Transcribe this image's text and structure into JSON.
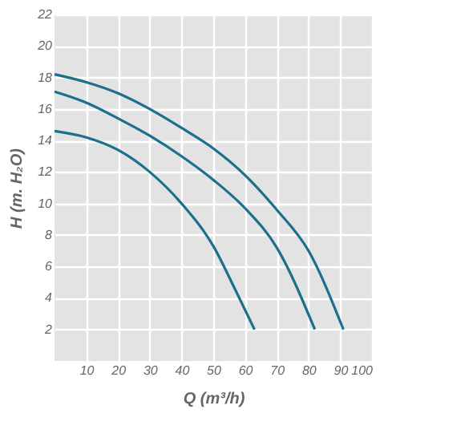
{
  "chart_data": {
    "type": "line",
    "xlabel": "Q (m³/h)",
    "ylabel": "H (m. H₂O)",
    "xlim": [
      0,
      100
    ],
    "ylim": [
      0,
      22
    ],
    "xticks": [
      10,
      20,
      30,
      40,
      50,
      60,
      70,
      80,
      90,
      100
    ],
    "yticks": [
      2,
      4,
      6,
      8,
      10,
      12,
      14,
      16,
      18,
      20,
      22
    ],
    "grid": true,
    "marker": "none",
    "line_style": "solid",
    "series": [
      {
        "color": "#1d6f8c",
        "x": [
          0,
          10,
          20,
          30,
          40,
          50,
          57,
          63
        ],
        "values": [
          14.6,
          14.2,
          13.4,
          12,
          10,
          7.3,
          4.5,
          2
        ]
      },
      {
        "color": "#1d6f8c",
        "x": [
          0,
          10,
          20,
          30,
          40,
          50,
          60,
          70,
          82
        ],
        "values": [
          17.1,
          16.4,
          15.4,
          14.3,
          13,
          11.5,
          9.7,
          7.2,
          2
        ]
      },
      {
        "color": "#1d6f8c",
        "x": [
          0,
          10,
          20,
          30,
          40,
          50,
          60,
          70,
          80,
          91
        ],
        "values": [
          18.2,
          17.7,
          17,
          16,
          14.8,
          13.5,
          11.8,
          9.6,
          7,
          2
        ]
      }
    ]
  }
}
